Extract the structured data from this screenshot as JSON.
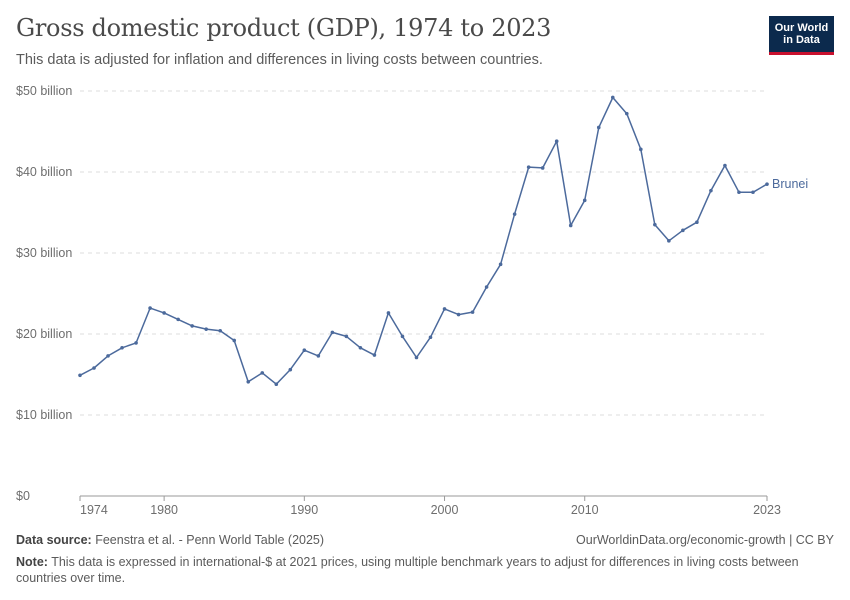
{
  "header": {
    "title": "Gross domestic product (GDP), 1974 to 2023",
    "subtitle": "This data is adjusted for inflation and differences in living costs between countries."
  },
  "logo": {
    "line1": "Our World",
    "line2": "in Data",
    "bg_color": "#0c2a4d",
    "accent_color": "#c8102e"
  },
  "footer": {
    "source_label": "Data source:",
    "source_text": "Feenstra et al. - Penn World Table (2025)",
    "url_text": "OurWorldinData.org/economic-growth | CC BY",
    "note_label": "Note:",
    "note_text": "This data is expressed in international-$ at 2021 prices, using multiple benchmark years to adjust for differences in living costs between countries over time."
  },
  "chart_data": {
    "type": "line",
    "title": "Gross domestic product (GDP), 1974 to 2023",
    "subtitle": "This data is adjusted for inflation and differences in living costs between countries.",
    "xlim": [
      1974,
      2023
    ],
    "ylim": [
      0,
      50
    ],
    "x_ticks": [
      1974,
      1980,
      1990,
      2000,
      2010,
      2023
    ],
    "y_ticks": [
      {
        "value": 0,
        "label": "$0"
      },
      {
        "value": 10,
        "label": "$10 billion"
      },
      {
        "value": 20,
        "label": "$20 billion"
      },
      {
        "value": 30,
        "label": "$30 billion"
      },
      {
        "value": 40,
        "label": "$40 billion"
      },
      {
        "value": 50,
        "label": "$50 billion"
      }
    ],
    "grid": "horizontal dashed",
    "line_color": "#4c6a9c",
    "series": [
      {
        "name": "Brunei",
        "x": [
          1974,
          1975,
          1976,
          1977,
          1978,
          1979,
          1980,
          1981,
          1982,
          1983,
          1984,
          1985,
          1986,
          1987,
          1988,
          1989,
          1990,
          1991,
          1992,
          1993,
          1994,
          1995,
          1996,
          1997,
          1998,
          1999,
          2000,
          2001,
          2002,
          2003,
          2004,
          2005,
          2006,
          2007,
          2008,
          2009,
          2010,
          2011,
          2012,
          2013,
          2014,
          2015,
          2016,
          2017,
          2018,
          2019,
          2020,
          2021,
          2022,
          2023
        ],
        "values": [
          14.9,
          15.8,
          17.3,
          18.3,
          18.9,
          23.2,
          22.6,
          21.8,
          21.0,
          20.6,
          20.4,
          19.2,
          14.1,
          15.2,
          13.8,
          15.6,
          18.0,
          17.3,
          20.2,
          19.7,
          18.3,
          17.4,
          22.6,
          19.7,
          17.1,
          19.6,
          23.1,
          22.4,
          22.7,
          25.8,
          28.6,
          34.8,
          40.6,
          40.5,
          43.8,
          33.4,
          36.5,
          45.5,
          49.2,
          47.2,
          42.8,
          33.5,
          31.5,
          32.8,
          33.8,
          37.7,
          40.8,
          37.5,
          37.5,
          38.5
        ]
      }
    ]
  }
}
